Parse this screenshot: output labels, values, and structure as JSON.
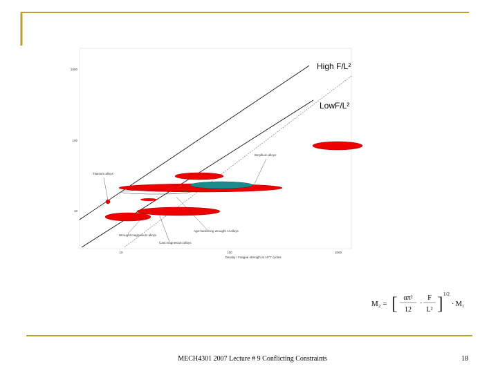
{
  "slide": {
    "chart": {
      "line_labels": [
        "High F/L²",
        "LowF/L²"
      ],
      "annotations": [
        "Titanium alloys",
        "Beryllium alloys",
        "Wrought magnesium alloys",
        "Cast magnesium alloys",
        "Age-hardening wrought Al-alloys"
      ],
      "x_axis_label": "Density / Fatigue strength at 10^7 cycles",
      "y_tick_labels": [
        "1000",
        "100",
        "10"
      ],
      "x_tick_labels": [
        "10",
        "100",
        "1000"
      ]
    },
    "formula": {
      "lhs": "M₂ =",
      "num1": "απ²",
      "den1": "12",
      "num2": "F",
      "den2": "L²",
      "exponent": "1/2",
      "rhs": "· M₁"
    },
    "footer": "MECH4301 2007 Lecture # 9 Conflicting Constraints",
    "page_number": "18"
  }
}
